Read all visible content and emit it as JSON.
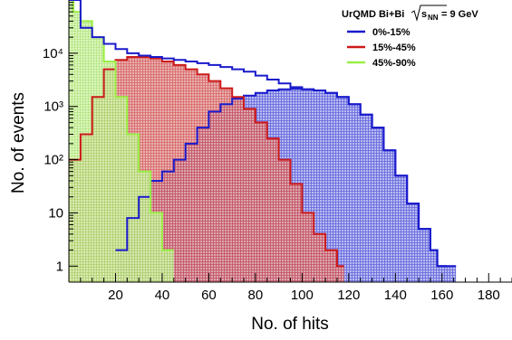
{
  "chart_data": {
    "type": "area",
    "xlabel": "No. of hits",
    "ylabel": "No. of events",
    "xlim": [
      0,
      190
    ],
    "ylim": [
      0.5,
      100000
    ],
    "y_scale": "log",
    "x_ticks": [
      20,
      40,
      60,
      80,
      100,
      120,
      140,
      160,
      180
    ],
    "x_tick_labels": [
      "20",
      "40",
      "60",
      "80",
      "100",
      "120",
      "140",
      "160",
      "180"
    ],
    "y_ticks": [
      1,
      10,
      100,
      1000,
      10000
    ],
    "y_tick_labels": [
      "1",
      "10",
      "10²",
      "10³",
      "10⁴"
    ],
    "legend": {
      "title_main": "UrQMD Bi+Bi",
      "title_sqrt": "s",
      "title_sub": "NN",
      "title_value": " = 9 GeV",
      "placement": "top-right"
    },
    "series": [
      {
        "name": "0%-15%",
        "color": "#1a1acc",
        "x": [
          0,
          5,
          10,
          15,
          20,
          25,
          30,
          35,
          40,
          45,
          50,
          55,
          60,
          65,
          70,
          75,
          80,
          85,
          90,
          95,
          100,
          105,
          110,
          115,
          120,
          125,
          130,
          135,
          140,
          145,
          150,
          155,
          158,
          162,
          166
        ],
        "values": [
          null,
          null,
          null,
          null,
          2,
          8,
          20,
          40,
          60,
          100,
          200,
          400,
          800,
          1100,
          1400,
          1600,
          1800,
          2000,
          2100,
          2150,
          2100,
          2000,
          1800,
          1500,
          1100,
          700,
          400,
          150,
          50,
          15,
          5,
          2,
          1,
          1,
          null
        ]
      },
      {
        "name": "15%-45%",
        "color": "#cc1a1a",
        "x": [
          0,
          5,
          10,
          15,
          20,
          25,
          30,
          35,
          40,
          45,
          50,
          55,
          60,
          65,
          70,
          75,
          80,
          85,
          90,
          95,
          100,
          105,
          110,
          115,
          118
        ],
        "values": [
          100,
          300,
          1500,
          5000,
          7500,
          8500,
          8500,
          8000,
          7000,
          6000,
          5000,
          4000,
          3000,
          2200,
          1500,
          900,
          500,
          250,
          100,
          35,
          10,
          4,
          2,
          1,
          null
        ]
      },
      {
        "name": "45%-90%",
        "color": "#99ee44",
        "x": [
          0,
          2,
          5,
          10,
          15,
          20,
          25,
          30,
          35,
          40,
          45
        ],
        "values": [
          100000,
          60000,
          40000,
          20000,
          7000,
          1500,
          300,
          60,
          10,
          2,
          null
        ]
      }
    ],
    "total_envelope": {
      "x": [
        0,
        5,
        10,
        15,
        20,
        25,
        30,
        35,
        40,
        45,
        50,
        55,
        60,
        65,
        70,
        75,
        80,
        85,
        90,
        95,
        100,
        105,
        110,
        115,
        120,
        125,
        130,
        135,
        140,
        145,
        150,
        155,
        158,
        162
      ],
      "values": [
        100000,
        30000,
        20000,
        15000,
        12000,
        10000,
        9000,
        8500,
        8000,
        7500,
        7000,
        6500,
        6000,
        5500,
        5000,
        4500,
        3800,
        3200,
        2700,
        2300,
        2100,
        2000,
        1800,
        1500,
        1100,
        700,
        400,
        150,
        50,
        15,
        5,
        2,
        1,
        1
      ]
    }
  }
}
